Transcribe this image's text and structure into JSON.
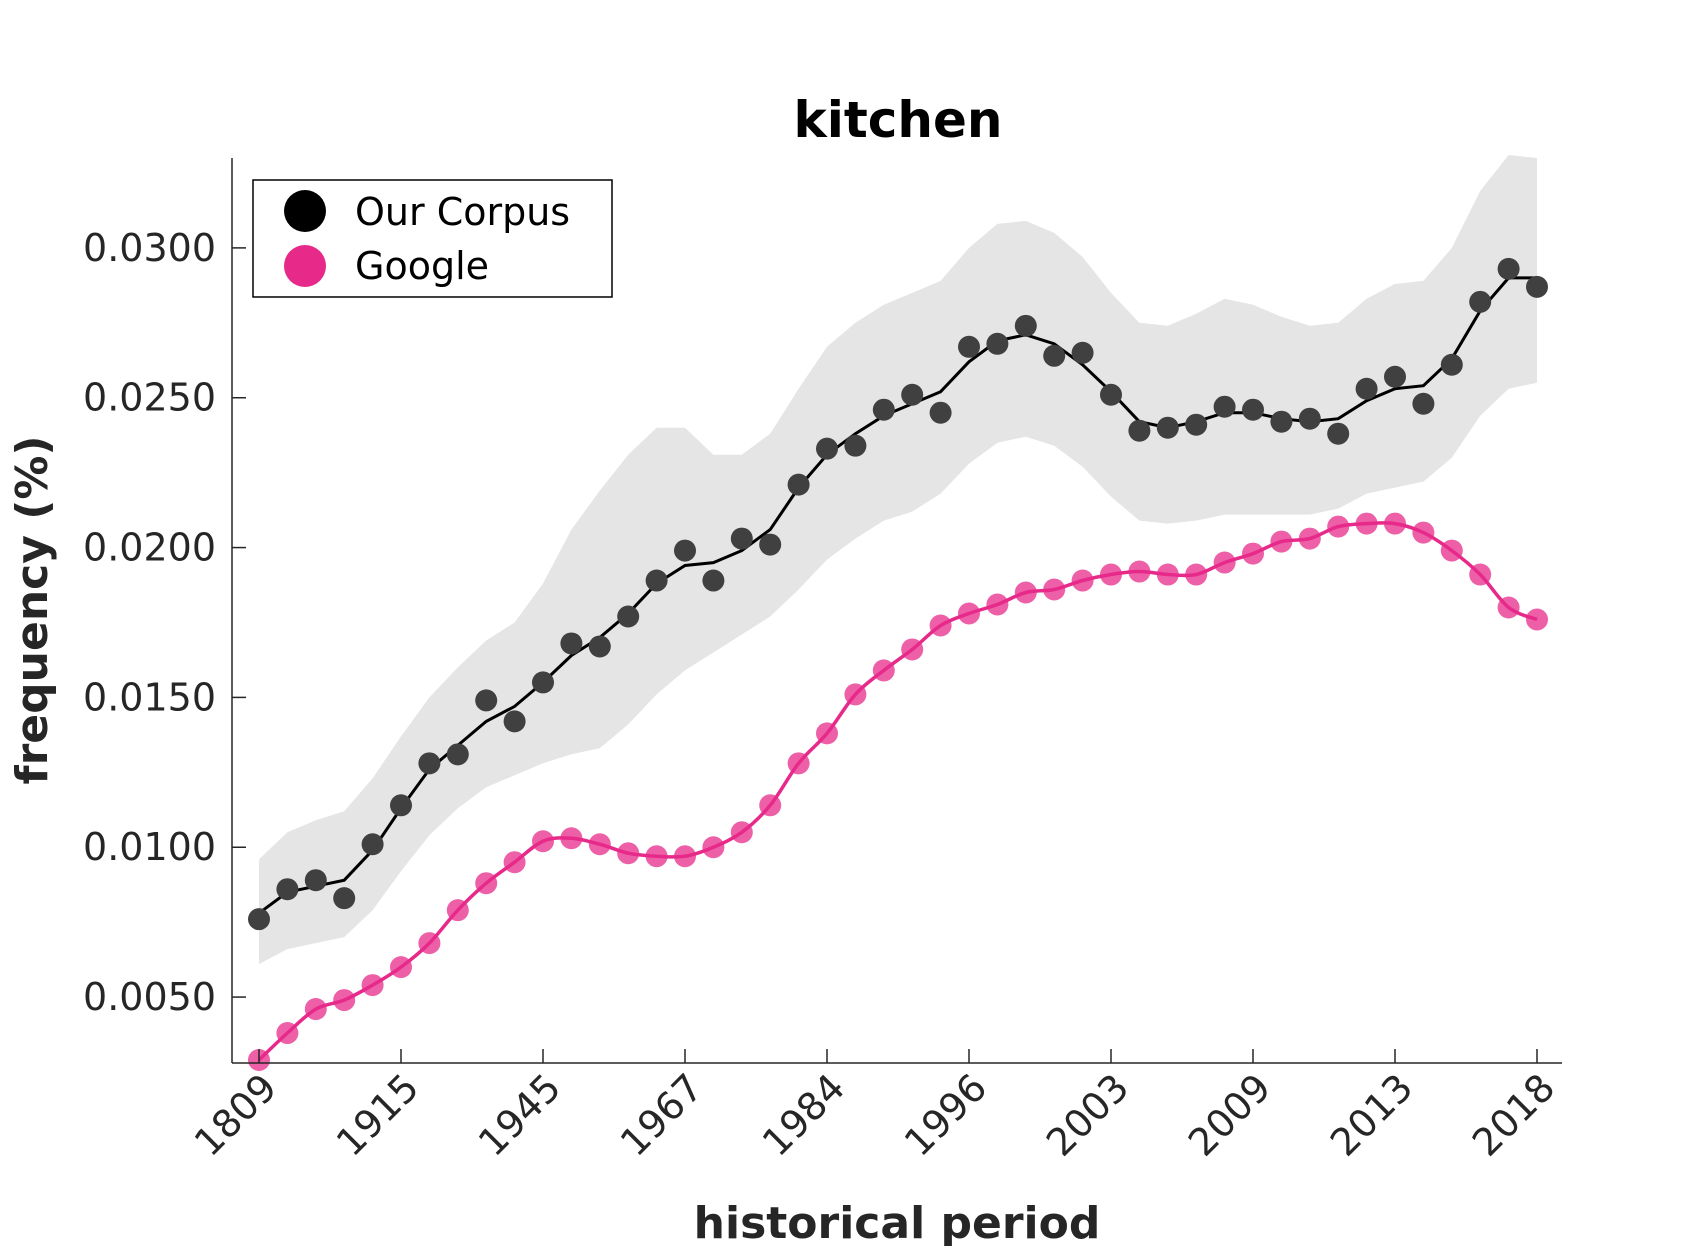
{
  "chart_data": {
    "type": "line",
    "title": "kitchen",
    "xlabel": "historical period",
    "ylabel": "frequency (%)",
    "x_tick_labels": [
      "1809",
      "1915",
      "1945",
      "1967",
      "1984",
      "1996",
      "2003",
      "2009",
      "2013",
      "2018"
    ],
    "y_ticks": [
      0.005,
      0.01,
      0.015,
      0.02,
      0.025,
      0.03
    ],
    "y_tick_labels": [
      "0.0050",
      "0.0100",
      "0.0150",
      "0.0200",
      "0.0250",
      "0.0300"
    ],
    "ylim": [
      0.0028,
      0.033
    ],
    "point_count": 46,
    "legend": {
      "position": "top-left"
    },
    "grid": false,
    "series": [
      {
        "name": "Our Corpus",
        "color": "#000000",
        "marker_color": "#404040",
        "points": [
          0.0076,
          0.0086,
          0.0089,
          0.0083,
          0.0101,
          0.0114,
          0.0128,
          0.0131,
          0.0149,
          0.0142,
          0.0155,
          0.0168,
          0.0167,
          0.0177,
          0.0189,
          0.0199,
          0.0189,
          0.0203,
          0.0201,
          0.0221,
          0.0233,
          0.0234,
          0.0246,
          0.0251,
          0.0245,
          0.0267,
          0.0268,
          0.0274,
          0.0264,
          0.0265,
          0.0251,
          0.0239,
          0.024,
          0.0241,
          0.0247,
          0.0246,
          0.0242,
          0.0243,
          0.0238,
          0.0253,
          0.0257,
          0.0248,
          0.0261,
          0.0282,
          0.0293,
          0.0287
        ],
        "smoothed": [
          0.0078,
          0.0085,
          0.0087,
          0.0089,
          0.0099,
          0.0113,
          0.0126,
          0.0134,
          0.0142,
          0.0147,
          0.0155,
          0.0164,
          0.017,
          0.0178,
          0.0188,
          0.0194,
          0.0195,
          0.0199,
          0.0206,
          0.022,
          0.0231,
          0.0238,
          0.0244,
          0.0248,
          0.0252,
          0.0262,
          0.0269,
          0.0271,
          0.0268,
          0.0261,
          0.0252,
          0.0242,
          0.024,
          0.0242,
          0.0245,
          0.0245,
          0.0243,
          0.0242,
          0.0243,
          0.0249,
          0.0253,
          0.0254,
          0.0263,
          0.0279,
          0.029,
          0.029
        ],
        "band_upper": [
          0.0096,
          0.0105,
          0.0109,
          0.0112,
          0.0123,
          0.0137,
          0.015,
          0.016,
          0.0169,
          0.0175,
          0.0188,
          0.0206,
          0.0219,
          0.0231,
          0.024,
          0.024,
          0.0231,
          0.0231,
          0.0238,
          0.0253,
          0.0267,
          0.0275,
          0.0281,
          0.0285,
          0.0289,
          0.03,
          0.0308,
          0.0309,
          0.0305,
          0.0297,
          0.0285,
          0.0275,
          0.0274,
          0.0278,
          0.0283,
          0.0281,
          0.0277,
          0.0274,
          0.0275,
          0.0283,
          0.0288,
          0.0289,
          0.03,
          0.0319,
          0.0331,
          0.033
        ],
        "band_lower": [
          0.0061,
          0.0066,
          0.0068,
          0.007,
          0.0079,
          0.0092,
          0.0104,
          0.0113,
          0.012,
          0.0124,
          0.0128,
          0.0131,
          0.0133,
          0.0141,
          0.0151,
          0.0159,
          0.0165,
          0.0171,
          0.0177,
          0.0186,
          0.0196,
          0.0203,
          0.0209,
          0.0212,
          0.0218,
          0.0228,
          0.0235,
          0.0237,
          0.0234,
          0.0227,
          0.0217,
          0.0209,
          0.0208,
          0.0209,
          0.0211,
          0.0211,
          0.0211,
          0.0211,
          0.0213,
          0.0218,
          0.022,
          0.0222,
          0.023,
          0.0244,
          0.0253,
          0.0255
        ]
      },
      {
        "name": "Google",
        "color": "#e7298a",
        "marker_color": "#e7298a",
        "points": [
          0.0029,
          0.0038,
          0.0046,
          0.0049,
          0.0054,
          0.006,
          0.0068,
          0.0079,
          0.0088,
          0.0095,
          0.0102,
          0.0103,
          0.0101,
          0.0098,
          0.0097,
          0.0097,
          0.01,
          0.0105,
          0.0114,
          0.0128,
          0.0138,
          0.0151,
          0.0159,
          0.0166,
          0.0174,
          0.0178,
          0.0181,
          0.0185,
          0.0186,
          0.0189,
          0.0191,
          0.0192,
          0.0191,
          0.0191,
          0.0195,
          0.0198,
          0.0202,
          0.0203,
          0.0207,
          0.0208,
          0.0208,
          0.0205,
          0.0199,
          0.0191,
          0.018,
          0.0176
        ]
      }
    ]
  }
}
